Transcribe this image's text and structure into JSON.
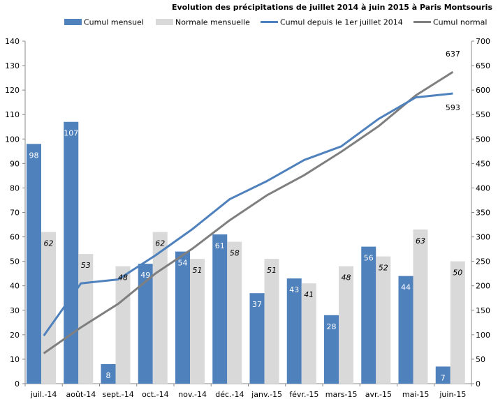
{
  "chart_data": {
    "type": "bar",
    "title": "Evolution des précipitations de juillet 2014 à juin 2015 à Paris Montsouris",
    "categories": [
      "juil.-14",
      "août-14",
      "sept.-14",
      "oct.-14",
      "nov.-14",
      "déc.-14",
      "janv.-15",
      "févr.-15",
      "mars-15",
      "avr.-15",
      "mai-15",
      "juin-15"
    ],
    "series": [
      {
        "name": "Cumul mensuel",
        "kind": "bar",
        "axis": "left",
        "color": "#4f81bd",
        "values": [
          98,
          107,
          8,
          49,
          54,
          61,
          37,
          43,
          28,
          56,
          44,
          7
        ],
        "labels": [
          "98",
          "107",
          "8",
          "49",
          "54",
          "61",
          "37",
          "43",
          "28",
          "56",
          "44",
          "7"
        ]
      },
      {
        "name": "Normale mensuelle",
        "kind": "bar",
        "axis": "left",
        "color": "#d9d9d9",
        "values": [
          62,
          53,
          48,
          62,
          51,
          58,
          51,
          41,
          48,
          52,
          63,
          50
        ],
        "labels": [
          "62",
          "53",
          "48",
          "62",
          "51",
          "58",
          "51",
          "41",
          "48",
          "52",
          "63",
          "50"
        ]
      },
      {
        "name": "Cumul depuis le 1er juillet 2014",
        "kind": "line",
        "axis": "right",
        "color": "#4f81bd",
        "values": [
          98,
          205,
          213,
          262,
          316,
          377,
          414,
          457,
          485,
          541,
          585,
          593
        ],
        "end_label": "593"
      },
      {
        "name": "Cumul normal",
        "kind": "line",
        "axis": "right",
        "color": "#7f7f7f",
        "values": [
          62,
          115,
          163,
          225,
          276,
          334,
          385,
          426,
          474,
          526,
          589,
          637
        ],
        "end_label": "637"
      }
    ],
    "y_left": {
      "min": 0,
      "max": 140,
      "step": 10,
      "tick_labels": [
        "0",
        "10",
        "20",
        "30",
        "40",
        "50",
        "60",
        "70",
        "80",
        "90",
        "100",
        "110",
        "120",
        "130",
        "140"
      ]
    },
    "y_right": {
      "min": 0,
      "max": 700,
      "step": 50,
      "tick_labels": [
        "0",
        "50",
        "100",
        "150",
        "200",
        "250",
        "300",
        "350",
        "400",
        "450",
        "500",
        "550",
        "600",
        "650",
        "700"
      ]
    },
    "legend_position": "top",
    "grid": false
  }
}
